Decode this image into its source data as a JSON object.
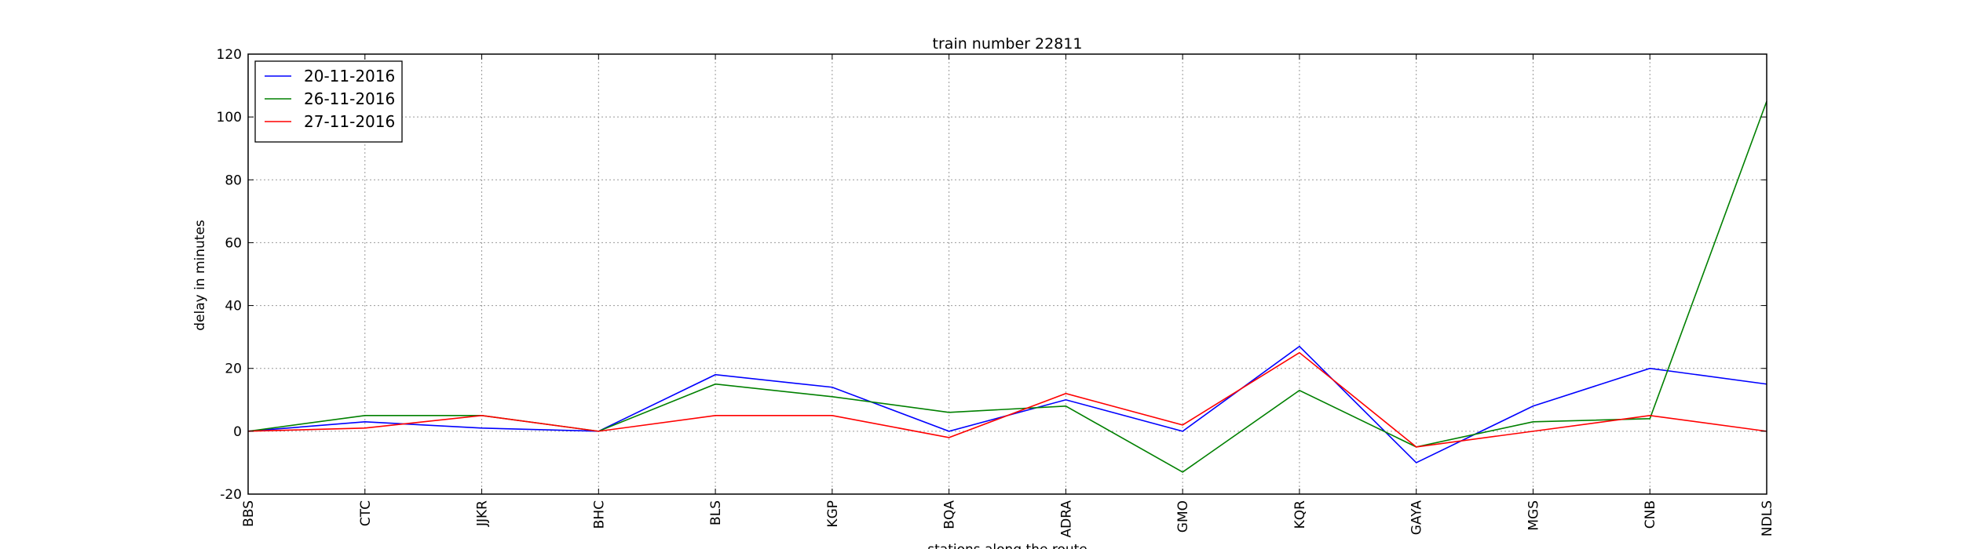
{
  "chart_data": {
    "type": "line",
    "title": "train number 22811",
    "xlabel": "stations along the route",
    "ylabel": "delay in minutes",
    "categories": [
      "BBS",
      "CTC",
      "JJKR",
      "BHC",
      "BLS",
      "KGP",
      "BQA",
      "ADRA",
      "GMO",
      "KQR",
      "GAYA",
      "MGS",
      "CNB",
      "NDLS"
    ],
    "ylim": [
      -20,
      120
    ],
    "yticks": [
      -20,
      0,
      20,
      40,
      60,
      80,
      100,
      120
    ],
    "grid": true,
    "legend_position": "top-left",
    "series": [
      {
        "name": "20-11-2016",
        "color": "#0000ff",
        "values": [
          0,
          3,
          1,
          0,
          18,
          14,
          0,
          10,
          0,
          27,
          -10,
          8,
          20,
          15
        ]
      },
      {
        "name": "26-11-2016",
        "color": "#008000",
        "values": [
          0,
          5,
          5,
          0,
          15,
          11,
          6,
          8,
          -13,
          13,
          -5,
          3,
          4,
          105
        ]
      },
      {
        "name": "27-11-2016",
        "color": "#ff0000",
        "values": [
          0,
          1,
          5,
          0,
          5,
          5,
          -2,
          12,
          2,
          25,
          -5,
          0,
          5,
          0
        ]
      }
    ]
  }
}
